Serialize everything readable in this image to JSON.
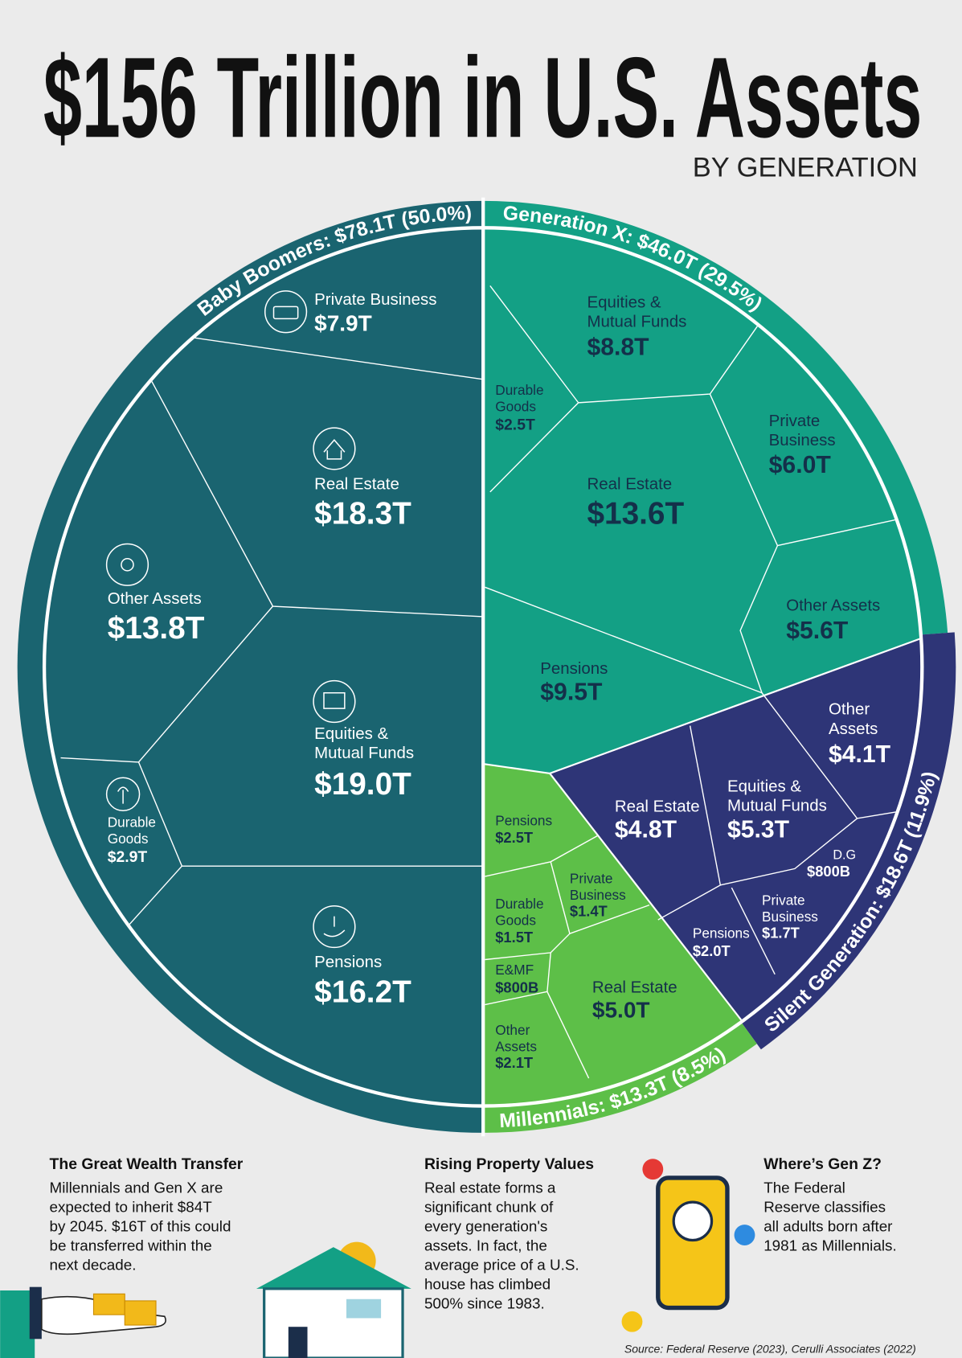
{
  "header": {
    "title": "$156 Trillion in U.S. Assets",
    "subtitle": "BY GENERATION"
  },
  "generations": [
    {
      "label": "Baby Boomers: $78.1T (50.0%)",
      "assets": [
        {
          "name": [
            "Private Business"
          ],
          "value": "$7.9T"
        },
        {
          "name": [
            "Real Estate"
          ],
          "value": "$18.3T"
        },
        {
          "name": [
            "Other Assets"
          ],
          "value": "$13.8T"
        },
        {
          "name": [
            "Equities &",
            "Mutual Funds"
          ],
          "value": "$19.0T"
        },
        {
          "name": [
            "Durable",
            "Goods"
          ],
          "value": "$2.9T"
        },
        {
          "name": [
            "Pensions"
          ],
          "value": "$16.2T"
        }
      ]
    },
    {
      "label": "Generation X: $46.0T (29.5%)",
      "assets": [
        {
          "name": [
            "Equities &",
            "Mutual Funds"
          ],
          "value": "$8.8T"
        },
        {
          "name": [
            "Durable",
            "Goods"
          ],
          "value": "$2.5T"
        },
        {
          "name": [
            "Private",
            "Business"
          ],
          "value": "$6.0T"
        },
        {
          "name": [
            "Real Estate"
          ],
          "value": "$13.6T"
        },
        {
          "name": [
            "Other Assets"
          ],
          "value": "$5.6T"
        },
        {
          "name": [
            "Pensions"
          ],
          "value": "$9.5T"
        }
      ]
    },
    {
      "label": "Silent Generation: $18.6T (11.9%)",
      "assets": [
        {
          "name": [
            "Other",
            "Assets"
          ],
          "value": "$4.1T"
        },
        {
          "name": [
            "Real Estate"
          ],
          "value": "$4.8T"
        },
        {
          "name": [
            "Equities &",
            "Mutual Funds"
          ],
          "value": "$5.3T"
        },
        {
          "name": [
            "D.G"
          ],
          "value": "$800B"
        },
        {
          "name": [
            "Private",
            "Business"
          ],
          "value": "$1.7T"
        },
        {
          "name": [
            "Pensions"
          ],
          "value": "$2.0T"
        }
      ]
    },
    {
      "label": "Millennials: $13.3T (8.5%)",
      "assets": [
        {
          "name": [
            "Pensions"
          ],
          "value": "$2.5T"
        },
        {
          "name": [
            "Private",
            "Business"
          ],
          "value": "$1.4T"
        },
        {
          "name": [
            "Durable",
            "Goods"
          ],
          "value": "$1.5T"
        },
        {
          "name": [
            "E&MF"
          ],
          "value": "$800B"
        },
        {
          "name": [
            "Real Estate"
          ],
          "value": "$5.0T"
        },
        {
          "name": [
            "Other",
            "Assets"
          ],
          "value": "$2.1T"
        }
      ]
    }
  ],
  "notes": [
    {
      "title": "The Great Wealth Transfer",
      "lines": [
        "Millennials and Gen X are",
        "expected to inherit $84T",
        "by 2045. $16T of this could",
        "be transferred within the",
        "next decade."
      ]
    },
    {
      "title": "Rising Property Values",
      "lines": [
        "Real estate forms a",
        "significant chunk of",
        "every generation's",
        "assets. In fact, the",
        "average price of a U.S.",
        "house has climbed",
        "500% since 1983."
      ]
    },
    {
      "title": "Where’s Gen Z?",
      "lines": [
        "The Federal",
        "Reserve classifies",
        "all adults born after",
        "1981 as Millennials."
      ]
    }
  ],
  "source": "Source: Federal Reserve (2023), Cerulli Associates (2022)"
}
